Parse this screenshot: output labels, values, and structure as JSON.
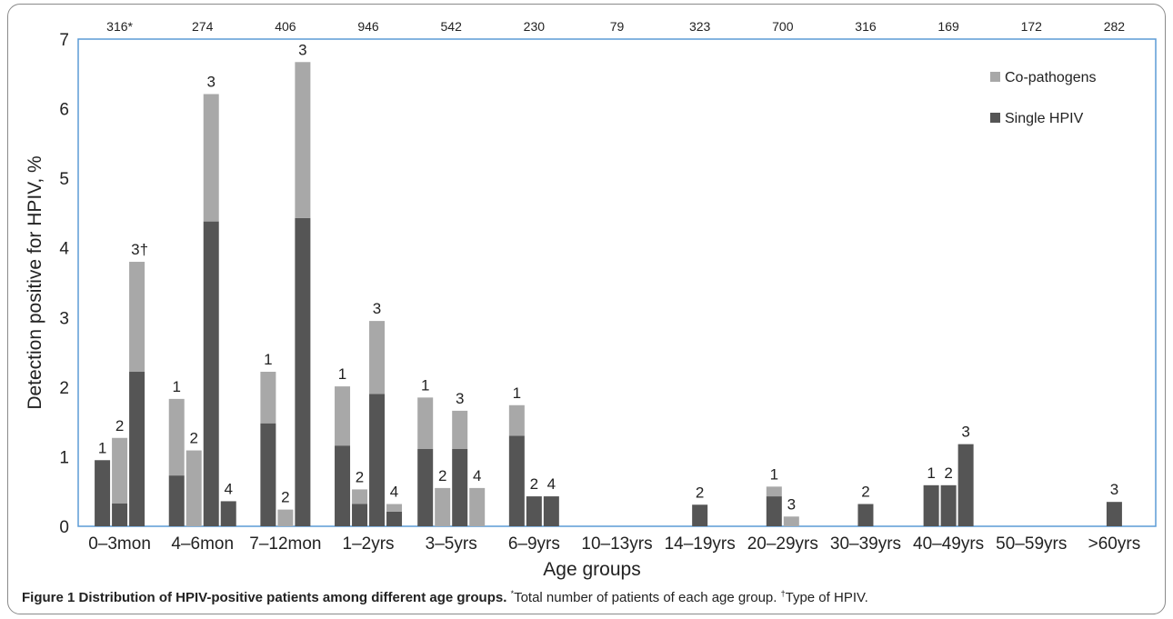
{
  "chart_data": {
    "type": "bar",
    "xlabel": "Age groups",
    "ylabel": "Detection positive for HPIV, %",
    "ylim": [
      0,
      7
    ],
    "yticks": [
      0,
      1,
      2,
      3,
      4,
      5,
      6,
      7
    ],
    "grid": false,
    "legend_position": "top-right",
    "colors": {
      "single": "#555555",
      "copathogens": "#a8a8a8",
      "plot_border": "#5b9bd5"
    },
    "series": [
      {
        "name": "Single HPIV",
        "color": "#555555"
      },
      {
        "name": "Co-pathogens",
        "color": "#a8a8a8"
      }
    ],
    "groups": [
      {
        "label": "0–3mon",
        "count": "316*",
        "bars": [
          {
            "type": "1",
            "single": 0.95,
            "copathogens": 0
          },
          {
            "type": "2",
            "single": 0.33,
            "copathogens": 0.94
          },
          {
            "type": "3†",
            "single": 2.22,
            "copathogens": 1.58
          }
        ]
      },
      {
        "label": "4–6mon",
        "count": "274",
        "bars": [
          {
            "type": "1",
            "single": 0.73,
            "copathogens": 1.1
          },
          {
            "type": "2",
            "single": 0,
            "copathogens": 1.09
          },
          {
            "type": "3",
            "single": 4.38,
            "copathogens": 1.83
          },
          {
            "type": "4",
            "single": 0.36,
            "copathogens": 0
          }
        ]
      },
      {
        "label": "7–12mon",
        "count": "406",
        "bars": [
          {
            "type": "1",
            "single": 1.48,
            "copathogens": 0.74
          },
          {
            "type": "2",
            "single": 0,
            "copathogens": 0.24
          },
          {
            "type": "3",
            "single": 4.43,
            "copathogens": 2.24
          }
        ]
      },
      {
        "label": "1–2yrs",
        "count": "946",
        "bars": [
          {
            "type": "1",
            "single": 1.16,
            "copathogens": 0.85
          },
          {
            "type": "2",
            "single": 0.32,
            "copathogens": 0.21
          },
          {
            "type": "3",
            "single": 1.9,
            "copathogens": 1.05
          },
          {
            "type": "4",
            "single": 0.21,
            "copathogens": 0.11
          }
        ]
      },
      {
        "label": "3–5yrs",
        "count": "542",
        "bars": [
          {
            "type": "1",
            "single": 1.11,
            "copathogens": 0.74
          },
          {
            "type": "2",
            "single": 0,
            "copathogens": 0.55
          },
          {
            "type": "3",
            "single": 1.11,
            "copathogens": 0.55
          },
          {
            "type": "4",
            "single": 0,
            "copathogens": 0.55
          }
        ]
      },
      {
        "label": "6–9yrs",
        "count": "230",
        "bars": [
          {
            "type": "1",
            "single": 1.3,
            "copathogens": 0.44
          },
          {
            "type": "2",
            "single": 0.43,
            "copathogens": 0
          },
          {
            "type": "4",
            "single": 0.43,
            "copathogens": 0
          }
        ]
      },
      {
        "label": "10–13yrs",
        "count": "79",
        "bars": []
      },
      {
        "label": "14–19yrs",
        "count": "323",
        "bars": [
          {
            "type": "2",
            "single": 0.31,
            "copathogens": 0
          }
        ]
      },
      {
        "label": "20–29yrs",
        "count": "700",
        "bars": [
          {
            "type": "1",
            "single": 0.43,
            "copathogens": 0.14
          },
          {
            "type": "3",
            "single": 0,
            "copathogens": 0.14
          }
        ]
      },
      {
        "label": "30–39yrs",
        "count": "316",
        "bars": [
          {
            "type": "2",
            "single": 0.32,
            "copathogens": 0
          }
        ]
      },
      {
        "label": "40–49yrs",
        "count": "169",
        "bars": [
          {
            "type": "1",
            "single": 0.59,
            "copathogens": 0
          },
          {
            "type": "2",
            "single": 0.59,
            "copathogens": 0
          },
          {
            "type": "3",
            "single": 1.18,
            "copathogens": 0
          }
        ]
      },
      {
        "label": "50–59yrs",
        "count": "172",
        "bars": []
      },
      {
        "label": ">60yrs",
        "count": "282",
        "bars": [
          {
            "type": "3",
            "single": 0.35,
            "copathogens": 0
          }
        ]
      }
    ]
  },
  "caption": {
    "lead": "Figure 1 Distribution of HPIV-positive patients among different age groups.",
    "note1_mark": "*",
    "note1_text": "Total number of patients of each age group.",
    "note2_mark": "†",
    "note2_text": "Type of HPIV."
  }
}
